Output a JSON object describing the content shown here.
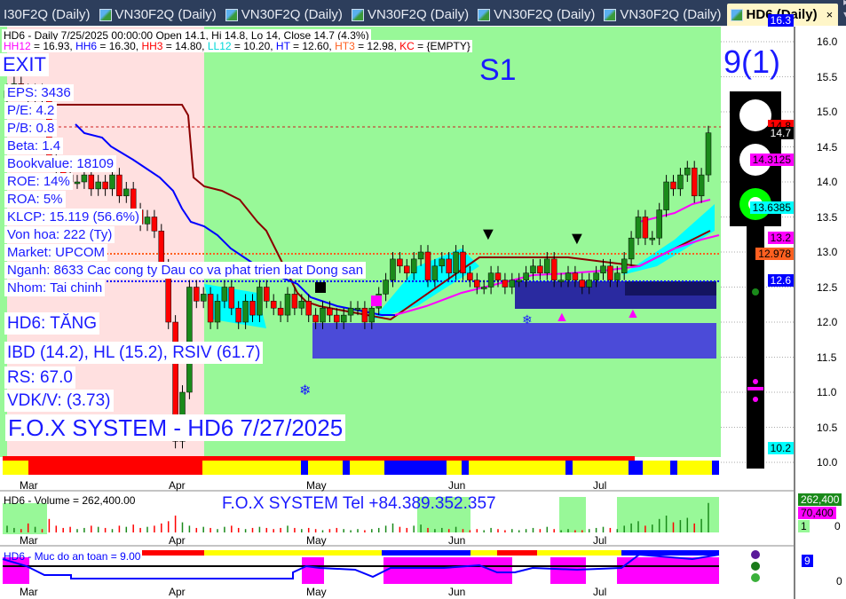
{
  "tabs": [
    {
      "label": "VN30F2Q (Daily)",
      "partial": "I30F2Q (Daily)"
    },
    {
      "label": "VN30F2Q (Daily)"
    },
    {
      "label": "VN30F2Q (Daily)"
    },
    {
      "label": "VN30F2Q (Daily)"
    },
    {
      "label": "VN30F2Q (Daily)"
    },
    {
      "label": "VN30F2Q (Daily)"
    },
    {
      "label": "HD6 (Daily)",
      "active": true
    }
  ],
  "tab_close": "×",
  "tab_nav": "◂ ▸ ▾",
  "header": {
    "line1": "HD6 - Daily 7/25/2025 00:00:00 Open 14.1, Hi 14.8, Lo 14, Close 14.7 (4.3%)",
    "line2": [
      {
        "k": "HH12",
        "v": " = 16.93, ",
        "color": "#ff00ff"
      },
      {
        "k": "HH6",
        "v": " = 16.30, ",
        "color": "#0000ff"
      },
      {
        "k": "HH3",
        "v": " = 14.80, ",
        "color": "#ff0000"
      },
      {
        "k": "LL12",
        "v": " = 10.20, ",
        "color": "#00d8d8"
      },
      {
        "k": "HT",
        "v": "  = 12.60, ",
        "color": "#0000ff"
      },
      {
        "k": "HT3",
        "v": "  = 12.98, ",
        "color": "#ff6020"
      },
      {
        "k": "KC",
        "v": " = {EMPTY}",
        "color": "#ff0000"
      }
    ]
  },
  "overlay": {
    "exit": "EXIT",
    "signal": "S1",
    "score": "9(1)",
    "fundamentals": [
      "EPS: 3436",
      "P/E: 4.2",
      "P/B: 0.8",
      "Beta: 1.4",
      "Bookvalue: 18109",
      "ROE: 14%",
      "ROA: 5%",
      "KLCP: 15.119 (56.6%)",
      "Von hoa: 222 (Ty)",
      "Market: UPCOM",
      "Nganh: 8633 Cac cong ty Dau co va phat trien bat Dong san",
      "Nhom: Tai chinh"
    ],
    "status": [
      "HD6: TĂNG",
      "IBD (14.2), HL (15.2), RSIV (61.7)",
      "RS: 67.0",
      "VDK/V:  (3.73)"
    ],
    "brand": "F.O.X SYSTEM - HD6 7/27/2025",
    "volume_brand": "F.O.X SYSTEM Tel +84.389.352.357"
  },
  "price_tags": [
    {
      "text": "16.3",
      "value": 16.3,
      "bg": "#0000ff",
      "fg": "#fff"
    },
    {
      "text": "14.8",
      "value": 14.8,
      "bg": "#ff0000",
      "fg": "#000"
    },
    {
      "text": "14.7",
      "value": 14.7,
      "bg": "#000000",
      "fg": "#fff"
    },
    {
      "text": "14.3125",
      "value": 14.3125,
      "bg": "#ff00ff",
      "fg": "#000"
    },
    {
      "text": "13.6385",
      "value": 13.6385,
      "bg": "#00ffff",
      "fg": "#000"
    },
    {
      "text": "13.2",
      "value": 13.2,
      "bg": "#ff00ff",
      "fg": "#000"
    },
    {
      "text": "12.978",
      "value": 12.978,
      "bg": "#ff6020",
      "fg": "#000"
    },
    {
      "text": "12.6",
      "value": 12.6,
      "bg": "#0000ff",
      "fg": "#fff"
    },
    {
      "text": "10.2",
      "value": 10.2,
      "bg": "#00ffff",
      "fg": "#000"
    }
  ],
  "volume_panel": {
    "title": "HD6 - Volume = 262,400.00",
    "tags": [
      {
        "text": "262,400",
        "bg": "#1a8a1a",
        "fg": "#fff"
      },
      {
        "text": "70,400",
        "bg": "#ff00ff",
        "fg": "#000"
      },
      {
        "text": "1",
        "bg": "#98f898",
        "fg": "#000"
      }
    ],
    "axis_zero": "0"
  },
  "safety_panel": {
    "title": "HD6 - Muc do an toan = 9.00",
    "tag": "9",
    "axis_zero": "0"
  },
  "chart_data": {
    "type": "candlestick",
    "symbol": "HD6",
    "yticks": [
      "16.0",
      "15.5",
      "15.0",
      "14.5",
      "14.0",
      "13.5",
      "13.0",
      "12.5",
      "12.0",
      "11.5",
      "11.0",
      "10.5",
      "10.0"
    ],
    "ylim": [
      10.0,
      16.0
    ],
    "xticks": [
      "Mar",
      "Apr",
      "May",
      "Jun",
      "Jul"
    ],
    "grid": true,
    "close": [
      15.3,
      15.4,
      15.3,
      15.2,
      15.3,
      15.2,
      14.3,
      14.2,
      14.1,
      14.0,
      14.0,
      14.1,
      13.9,
      14.0,
      13.9,
      14.1,
      13.8,
      13.9,
      13.6,
      13.4,
      13.5,
      13.3,
      12.8,
      12.0,
      10.3,
      11.0,
      12.5,
      12.3,
      12.4,
      12.0,
      12.3,
      12.5,
      12.2,
      12.0,
      12.3,
      12.1,
      12.5,
      12.3,
      12.2,
      12.1,
      12.4,
      12.2,
      12.3,
      12.1,
      12.0,
      12.2,
      12.1,
      12.0,
      12.1,
      12.2,
      12.2,
      12.0,
      12.2,
      12.4,
      12.6,
      12.9,
      12.8,
      12.7,
      12.9,
      13.0,
      12.6,
      12.8,
      12.9,
      12.7,
      13.0,
      12.7,
      12.6,
      12.5,
      12.5,
      12.7,
      12.6,
      12.5,
      12.6,
      12.6,
      12.7,
      12.8,
      12.7,
      12.9,
      12.6,
      12.6,
      12.7,
      12.6,
      12.5,
      12.6,
      12.7,
      12.8,
      12.6,
      12.7,
      12.9,
      13.2,
      13.5,
      13.2,
      13.2,
      13.6,
      14.0,
      13.9,
      14.1,
      14.2,
      13.8,
      14.1,
      14.7
    ],
    "last": {
      "open": 14.1,
      "high": 14.8,
      "low": 14.0,
      "close": 14.7,
      "change_pct": 4.3
    },
    "volume_k": [
      60,
      40,
      30,
      80,
      50,
      30,
      120,
      60,
      40,
      50,
      30,
      40,
      60,
      50,
      40,
      30,
      60,
      50,
      70,
      40,
      50,
      60,
      80,
      100,
      150,
      90,
      60,
      40,
      50,
      40,
      30,
      50,
      60,
      40,
      30,
      40,
      50,
      40,
      30,
      40,
      60,
      40,
      30,
      40,
      30,
      20,
      30,
      40,
      30,
      20,
      30,
      20,
      30,
      40,
      60,
      80,
      50,
      40,
      60,
      70,
      40,
      30,
      40,
      30,
      50,
      30,
      20,
      30,
      20,
      40,
      30,
      20,
      30,
      20,
      30,
      40,
      30,
      50,
      30,
      20,
      30,
      20,
      20,
      30,
      40,
      50,
      40,
      30,
      60,
      80,
      100,
      60,
      70,
      120,
      150,
      90,
      110,
      130,
      80,
      120,
      262.4
    ]
  },
  "colors": {
    "bg_up": "#98f898",
    "bg_down": "#ffe0e0",
    "up": "#1a8a1a",
    "down": "#ff0000",
    "accent": "#1a1aff"
  }
}
